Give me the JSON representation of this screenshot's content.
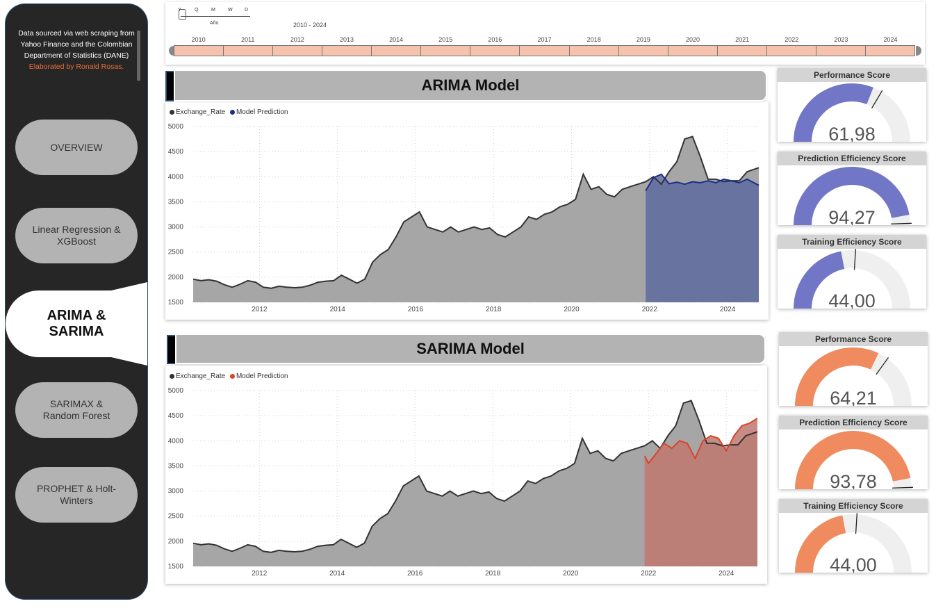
{
  "sidebar": {
    "source_text": "Data sourced via web scraping from Yahoo Finance and the Colombian Department of Statistics (DANE)",
    "credit": "Elaborated by Ronald Rosas.",
    "nav": [
      {
        "label": "OVERVIEW"
      },
      {
        "label": "Linear Regression & XGBoost"
      },
      {
        "label": "ARIMA & SARIMA"
      },
      {
        "label": "SARIMAX & Random Forest"
      },
      {
        "label": "PROPHET & Holt-Winters"
      }
    ]
  },
  "timeline": {
    "granularity": [
      "Y",
      "Q",
      "M",
      "W",
      "D"
    ],
    "granularity_label": "Año",
    "range_label": "2010 - 2024",
    "years": [
      "2010",
      "2011",
      "2012",
      "2013",
      "2014",
      "2015",
      "2016",
      "2017",
      "2018",
      "2019",
      "2020",
      "2021",
      "2022",
      "2023",
      "2024"
    ],
    "fill_color": "#f4c2ad"
  },
  "arima": {
    "title": "ARIMA Model",
    "legend": [
      {
        "name": "Exchange_Rate",
        "color": "#333333"
      },
      {
        "name": "Model Prediction",
        "color": "#1a2d8c"
      }
    ],
    "fill_color": "#5e6a9e",
    "line_color": "#1a2d8c",
    "gauges": [
      {
        "title": "Performance Score",
        "value": 61.98,
        "display": "61,98",
        "target": 0.67,
        "color": "#7176c6"
      },
      {
        "title": "Prediction Efficiency Score",
        "value": 94.27,
        "display": "94,27",
        "target": 0.99,
        "color": "#7176c6"
      },
      {
        "title": "Training Efficiency Score",
        "value": 44.0,
        "display": "44,00",
        "target": 0.52,
        "color": "#7176c6"
      }
    ]
  },
  "sarima": {
    "title": "SARIMA Model",
    "legend": [
      {
        "name": "Exchange_Rate",
        "color": "#333333"
      },
      {
        "name": "Model Prediction",
        "color": "#d9432a"
      }
    ],
    "fill_color": "#c0786e",
    "line_color": "#d9432a",
    "gauges": [
      {
        "title": "Performance Score",
        "value": 64.21,
        "display": "64,21",
        "target": 0.7,
        "color": "#ef8b5f"
      },
      {
        "title": "Prediction Efficiency Score",
        "value": 93.78,
        "display": "93,78",
        "target": 0.99,
        "color": "#ef8b5f"
      },
      {
        "title": "Training Efficiency Score",
        "value": 44.0,
        "display": "44,00",
        "target": 0.52,
        "color": "#ef8b5f"
      }
    ]
  },
  "chart_data": [
    {
      "type": "area",
      "x_ticks": [
        "2012",
        "2014",
        "2016",
        "2018",
        "2020",
        "2022",
        "2024"
      ],
      "y_ticks": [
        1500,
        2000,
        2500,
        3000,
        3500,
        4000,
        4500,
        5000
      ],
      "ylim": [
        1500,
        5000
      ],
      "xlim": [
        2010.3,
        2024.8
      ],
      "grid": true,
      "series": [
        {
          "name": "Exchange_Rate",
          "points": [
            [
              2010.3,
              1960
            ],
            [
              2010.5,
              1930
            ],
            [
              2010.7,
              1950
            ],
            [
              2010.9,
              1920
            ],
            [
              2011.1,
              1850
            ],
            [
              2011.3,
              1800
            ],
            [
              2011.5,
              1860
            ],
            [
              2011.7,
              1930
            ],
            [
              2011.9,
              1900
            ],
            [
              2012.1,
              1800
            ],
            [
              2012.3,
              1780
            ],
            [
              2012.5,
              1820
            ],
            [
              2012.7,
              1800
            ],
            [
              2012.9,
              1790
            ],
            [
              2013.1,
              1800
            ],
            [
              2013.3,
              1840
            ],
            [
              2013.5,
              1900
            ],
            [
              2013.7,
              1920
            ],
            [
              2013.9,
              1930
            ],
            [
              2014.1,
              2040
            ],
            [
              2014.3,
              1960
            ],
            [
              2014.5,
              1880
            ],
            [
              2014.7,
              1960
            ],
            [
              2014.9,
              2300
            ],
            [
              2015.1,
              2450
            ],
            [
              2015.3,
              2550
            ],
            [
              2015.5,
              2800
            ],
            [
              2015.7,
              3100
            ],
            [
              2015.9,
              3200
            ],
            [
              2016.1,
              3300
            ],
            [
              2016.3,
              3000
            ],
            [
              2016.5,
              2950
            ],
            [
              2016.7,
              2900
            ],
            [
              2016.9,
              3000
            ],
            [
              2017.1,
              2900
            ],
            [
              2017.3,
              2950
            ],
            [
              2017.5,
              3000
            ],
            [
              2017.7,
              2950
            ],
            [
              2017.9,
              2980
            ],
            [
              2018.1,
              2850
            ],
            [
              2018.3,
              2800
            ],
            [
              2018.5,
              2900
            ],
            [
              2018.7,
              3000
            ],
            [
              2018.9,
              3200
            ],
            [
              2019.1,
              3150
            ],
            [
              2019.3,
              3250
            ],
            [
              2019.5,
              3300
            ],
            [
              2019.7,
              3400
            ],
            [
              2019.9,
              3450
            ],
            [
              2020.1,
              3550
            ],
            [
              2020.3,
              4050
            ],
            [
              2020.5,
              3750
            ],
            [
              2020.7,
              3800
            ],
            [
              2020.9,
              3650
            ],
            [
              2021.1,
              3600
            ],
            [
              2021.3,
              3750
            ],
            [
              2021.5,
              3800
            ],
            [
              2021.7,
              3850
            ],
            [
              2021.9,
              3900
            ],
            [
              2022.1,
              4000
            ],
            [
              2022.3,
              3850
            ],
            [
              2022.5,
              4100
            ],
            [
              2022.7,
              4300
            ],
            [
              2022.9,
              4750
            ],
            [
              2023.1,
              4800
            ],
            [
              2023.3,
              4400
            ],
            [
              2023.5,
              3950
            ],
            [
              2023.7,
              3950
            ],
            [
              2023.9,
              3900
            ],
            [
              2024.1,
              3920
            ],
            [
              2024.3,
              3920
            ],
            [
              2024.5,
              4100
            ],
            [
              2024.8,
              4180
            ]
          ]
        },
        {
          "name": "Model Prediction",
          "points": [
            [
              2021.9,
              3720
            ],
            [
              2022.1,
              3980
            ],
            [
              2022.3,
              4050
            ],
            [
              2022.5,
              3860
            ],
            [
              2022.7,
              3890
            ],
            [
              2022.9,
              3850
            ],
            [
              2023.1,
              3900
            ],
            [
              2023.3,
              3880
            ],
            [
              2023.5,
              3920
            ],
            [
              2023.7,
              3880
            ],
            [
              2023.9,
              3950
            ],
            [
              2024.1,
              3920
            ],
            [
              2024.3,
              3880
            ],
            [
              2024.5,
              3950
            ],
            [
              2024.8,
              3830
            ]
          ]
        }
      ]
    },
    {
      "type": "area",
      "x_ticks": [
        "2012",
        "2014",
        "2016",
        "2018",
        "2020",
        "2022",
        "2024"
      ],
      "y_ticks": [
        1500,
        2000,
        2500,
        3000,
        3500,
        4000,
        4500,
        5000
      ],
      "ylim": [
        1500,
        5000
      ],
      "xlim": [
        2010.3,
        2024.8
      ],
      "grid": true,
      "series": [
        {
          "name": "Exchange_Rate",
          "points": [
            [
              2010.3,
              1960
            ],
            [
              2010.5,
              1930
            ],
            [
              2010.7,
              1950
            ],
            [
              2010.9,
              1920
            ],
            [
              2011.1,
              1850
            ],
            [
              2011.3,
              1800
            ],
            [
              2011.5,
              1860
            ],
            [
              2011.7,
              1930
            ],
            [
              2011.9,
              1900
            ],
            [
              2012.1,
              1800
            ],
            [
              2012.3,
              1780
            ],
            [
              2012.5,
              1820
            ],
            [
              2012.7,
              1800
            ],
            [
              2012.9,
              1790
            ],
            [
              2013.1,
              1800
            ],
            [
              2013.3,
              1840
            ],
            [
              2013.5,
              1900
            ],
            [
              2013.7,
              1920
            ],
            [
              2013.9,
              1930
            ],
            [
              2014.1,
              2040
            ],
            [
              2014.3,
              1960
            ],
            [
              2014.5,
              1880
            ],
            [
              2014.7,
              1960
            ],
            [
              2014.9,
              2300
            ],
            [
              2015.1,
              2450
            ],
            [
              2015.3,
              2550
            ],
            [
              2015.5,
              2800
            ],
            [
              2015.7,
              3100
            ],
            [
              2015.9,
              3200
            ],
            [
              2016.1,
              3300
            ],
            [
              2016.3,
              3000
            ],
            [
              2016.5,
              2950
            ],
            [
              2016.7,
              2900
            ],
            [
              2016.9,
              3000
            ],
            [
              2017.1,
              2900
            ],
            [
              2017.3,
              2950
            ],
            [
              2017.5,
              3000
            ],
            [
              2017.7,
              2950
            ],
            [
              2017.9,
              2980
            ],
            [
              2018.1,
              2850
            ],
            [
              2018.3,
              2800
            ],
            [
              2018.5,
              2900
            ],
            [
              2018.7,
              3000
            ],
            [
              2018.9,
              3200
            ],
            [
              2019.1,
              3150
            ],
            [
              2019.3,
              3250
            ],
            [
              2019.5,
              3300
            ],
            [
              2019.7,
              3400
            ],
            [
              2019.9,
              3450
            ],
            [
              2020.1,
              3550
            ],
            [
              2020.3,
              4050
            ],
            [
              2020.5,
              3750
            ],
            [
              2020.7,
              3800
            ],
            [
              2020.9,
              3650
            ],
            [
              2021.1,
              3600
            ],
            [
              2021.3,
              3750
            ],
            [
              2021.5,
              3800
            ],
            [
              2021.7,
              3850
            ],
            [
              2021.9,
              3900
            ],
            [
              2022.1,
              4000
            ],
            [
              2022.3,
              3850
            ],
            [
              2022.5,
              4100
            ],
            [
              2022.7,
              4300
            ],
            [
              2022.9,
              4750
            ],
            [
              2023.1,
              4800
            ],
            [
              2023.3,
              4400
            ],
            [
              2023.5,
              3950
            ],
            [
              2023.7,
              3950
            ],
            [
              2023.9,
              3900
            ],
            [
              2024.1,
              3920
            ],
            [
              2024.3,
              3920
            ],
            [
              2024.5,
              4100
            ],
            [
              2024.8,
              4180
            ]
          ]
        },
        {
          "name": "Model Prediction",
          "points": [
            [
              2021.9,
              3700
            ],
            [
              2022.0,
              3550
            ],
            [
              2022.2,
              3750
            ],
            [
              2022.4,
              3950
            ],
            [
              2022.6,
              3850
            ],
            [
              2022.8,
              4000
            ],
            [
              2023.0,
              3950
            ],
            [
              2023.2,
              3650
            ],
            [
              2023.4,
              4000
            ],
            [
              2023.6,
              4100
            ],
            [
              2023.8,
              4050
            ],
            [
              2024.0,
              3800
            ],
            [
              2024.2,
              4100
            ],
            [
              2024.4,
              4300
            ],
            [
              2024.6,
              4350
            ],
            [
              2024.8,
              4450
            ]
          ]
        }
      ]
    }
  ]
}
